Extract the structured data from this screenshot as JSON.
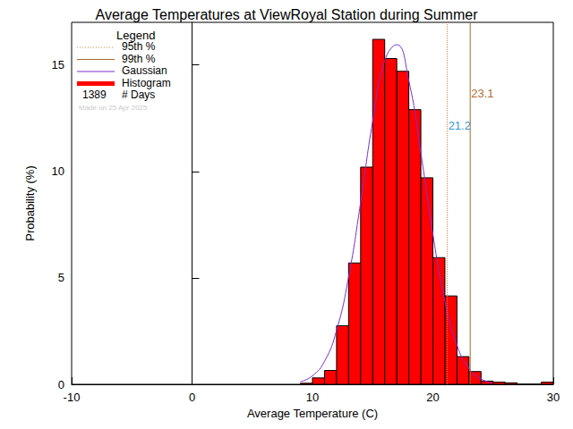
{
  "chart_data": {
    "type": "histogram",
    "title": "Average Temperatures at ViewRoyal Station during Summer",
    "xlabel": "Average Temperature (C)",
    "ylabel": "Probability (%)",
    "xlim": [
      -10,
      30
    ],
    "xticks": [
      -10,
      0,
      10,
      20,
      30
    ],
    "ylim": [
      0,
      17
    ],
    "yticks": [
      0,
      5,
      10,
      15
    ],
    "legend": "upper left",
    "legend_title": "Legend",
    "count": {
      "value": 1389,
      "label": "# Days"
    },
    "note": "Made on 25 Apr 2025",
    "series": [
      {
        "name": "95th %",
        "type": "vline",
        "value": 21.2,
        "color": "#e08040",
        "line_style": "dotted"
      },
      {
        "name": "99th %",
        "type": "vline",
        "value": 23.1,
        "color": "#a86a2a",
        "line_style": "solid"
      },
      {
        "name": "Gaussian",
        "type": "line",
        "color": "#7a2fd0",
        "x": [
          9,
          10,
          11,
          12,
          13,
          14,
          15,
          16,
          17,
          18,
          19,
          20,
          21,
          22,
          23,
          24,
          25
        ],
        "values": [
          0.12,
          0.4,
          1.08,
          2.53,
          5.04,
          8.54,
          12.35,
          15.2,
          15.95,
          14.26,
          10.86,
          7.05,
          3.9,
          1.84,
          0.74,
          0.25,
          0.07
        ]
      },
      {
        "name": "Histogram",
        "type": "histogram",
        "color": "#ff0000",
        "bins": [
          9,
          10,
          11,
          12,
          13,
          14,
          15,
          16,
          17,
          18,
          19,
          20,
          21,
          22,
          23,
          24,
          25,
          26,
          27,
          28,
          29,
          30
        ],
        "values": [
          0.05,
          0.3,
          0.65,
          2.75,
          5.7,
          10.2,
          16.2,
          15.3,
          14.7,
          12.9,
          9.7,
          5.95,
          4.15,
          1.3,
          0.6,
          0.15,
          0.1,
          0.07,
          0,
          0,
          0.1
        ]
      }
    ]
  }
}
